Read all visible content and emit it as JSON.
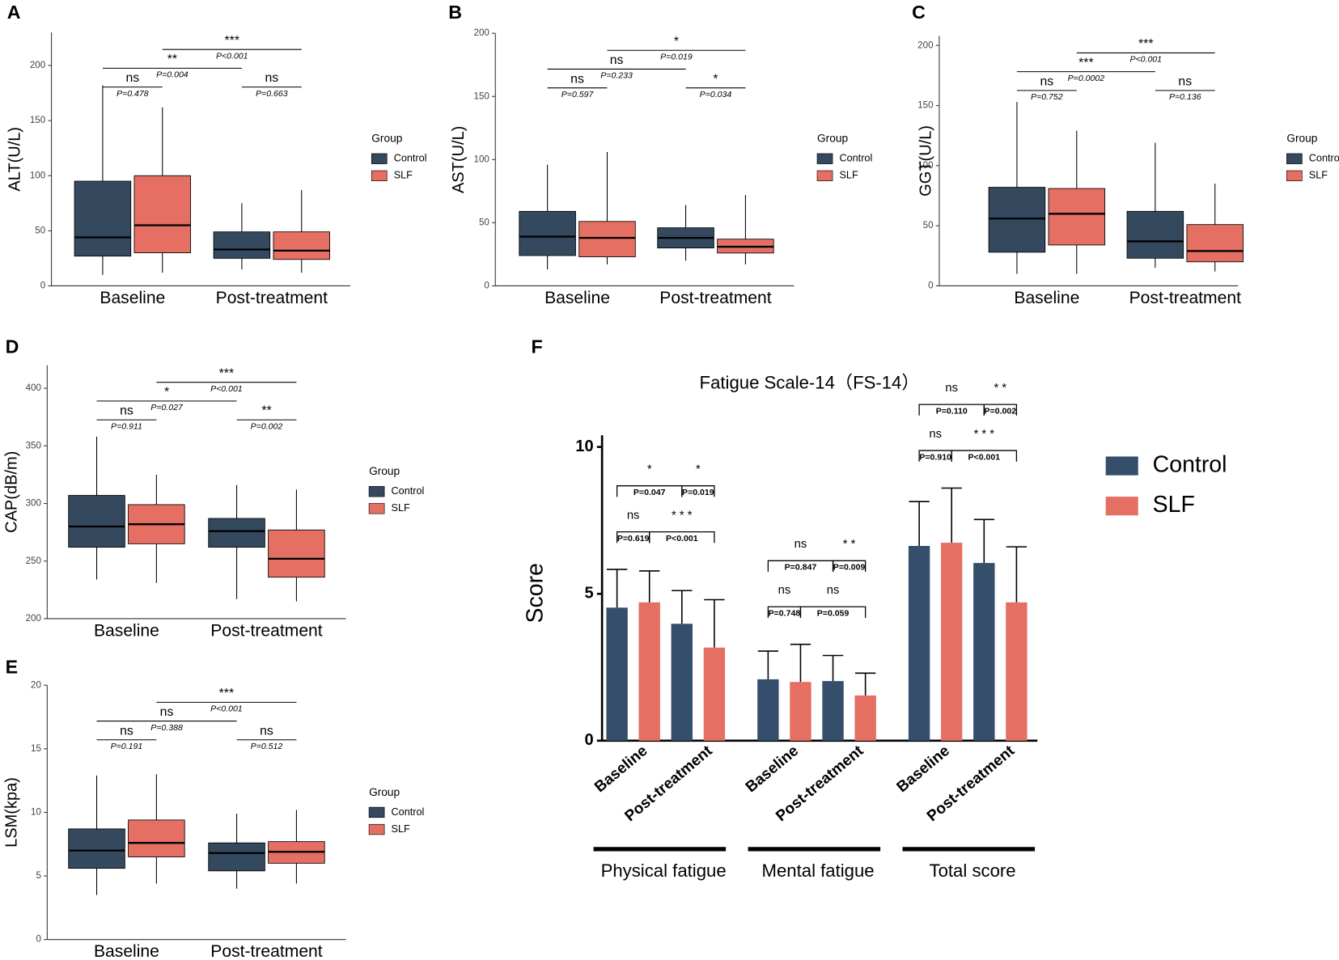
{
  "chart_data": [
    {
      "panel": "A",
      "type": "box",
      "ylabel": "ALT(U/L)",
      "categories": [
        "Baseline",
        "Post-treatment"
      ],
      "ylim": [
        0,
        230
      ],
      "yticks": [
        0,
        50,
        100,
        150,
        200
      ],
      "legend_title": "Group",
      "series": [
        {
          "name": "Control",
          "color": "#34495e",
          "values": [
            {
              "min": 10,
              "q1": 27,
              "median": 44,
              "q3": 95,
              "max": 182
            },
            {
              "min": 15,
              "q1": 25,
              "median": 33,
              "q3": 49,
              "max": 75
            }
          ]
        },
        {
          "name": "SLF",
          "color": "#e46f62",
          "values": [
            {
              "min": 12,
              "q1": 30,
              "median": 55,
              "q3": 100,
              "max": 162
            },
            {
              "min": 12,
              "q1": 24,
              "median": 32,
              "q3": 49,
              "max": 87
            }
          ]
        }
      ],
      "annotations": [
        {
          "label": "ns",
          "p": "P=0.478"
        },
        {
          "label": "ns",
          "p": "P=0.663"
        },
        {
          "label": "**",
          "p": "P=0.004"
        },
        {
          "label": "***",
          "p": "P<0.001"
        }
      ]
    },
    {
      "panel": "B",
      "type": "box",
      "ylabel": "AST(U/L)",
      "categories": [
        "Baseline",
        "Post-treatment"
      ],
      "ylim": [
        0,
        200
      ],
      "yticks": [
        0,
        50,
        100,
        150,
        200
      ],
      "legend_title": "Group",
      "series": [
        {
          "name": "Control",
          "color": "#34495e",
          "values": [
            {
              "min": 13,
              "q1": 24,
              "median": 39,
              "q3": 59,
              "max": 96
            },
            {
              "min": 20,
              "q1": 30,
              "median": 38,
              "q3": 46,
              "max": 64
            }
          ]
        },
        {
          "name": "SLF",
          "color": "#e46f62",
          "values": [
            {
              "min": 17,
              "q1": 23,
              "median": 38,
              "q3": 51,
              "max": 106
            },
            {
              "min": 17,
              "q1": 26,
              "median": 31,
              "q3": 37,
              "max": 72
            }
          ]
        }
      ],
      "annotations": [
        {
          "label": "ns",
          "p": "P=0.597"
        },
        {
          "label": "*",
          "p": "P=0.034"
        },
        {
          "label": "ns",
          "p": "P=0.233"
        },
        {
          "label": "*",
          "p": "P=0.019"
        }
      ]
    },
    {
      "panel": "C",
      "type": "box",
      "ylabel": "GGT(U/L)",
      "categories": [
        "Baseline",
        "Post-treatment"
      ],
      "ylim": [
        0,
        208
      ],
      "yticks": [
        0,
        50,
        100,
        150,
        200
      ],
      "legend_title": "Group",
      "series": [
        {
          "name": "Control",
          "color": "#34495e",
          "values": [
            {
              "min": 10,
              "q1": 28,
              "median": 56,
              "q3": 82,
              "max": 153
            },
            {
              "min": 15,
              "q1": 23,
              "median": 37,
              "q3": 62,
              "max": 119
            }
          ]
        },
        {
          "name": "SLF",
          "color": "#e46f62",
          "values": [
            {
              "min": 10,
              "q1": 34,
              "median": 60,
              "q3": 81,
              "max": 129
            },
            {
              "min": 12,
              "q1": 20,
              "median": 29,
              "q3": 51,
              "max": 85
            }
          ]
        }
      ],
      "annotations": [
        {
          "label": "ns",
          "p": "P=0.752"
        },
        {
          "label": "ns",
          "p": "P=0.136"
        },
        {
          "label": "***",
          "p": "P=0.0002"
        },
        {
          "label": "***",
          "p": "P<0.001"
        }
      ]
    },
    {
      "panel": "D",
      "type": "box",
      "ylabel": "CAP(dB/m)",
      "categories": [
        "Baseline",
        "Post-treatment"
      ],
      "ylim": [
        200,
        420
      ],
      "yticks": [
        200,
        250,
        300,
        350,
        400
      ],
      "legend_title": "Group",
      "series": [
        {
          "name": "Control",
          "color": "#34495e",
          "values": [
            {
              "min": 234,
              "q1": 262,
              "median": 280,
              "q3": 307,
              "max": 358
            },
            {
              "min": 217,
              "q1": 262,
              "median": 276,
              "q3": 287,
              "max": 316
            }
          ]
        },
        {
          "name": "SLF",
          "color": "#e46f62",
          "values": [
            {
              "min": 231,
              "q1": 265,
              "median": 282,
              "q3": 299,
              "max": 325
            },
            {
              "min": 215,
              "q1": 236,
              "median": 252,
              "q3": 277,
              "max": 312
            }
          ]
        }
      ],
      "annotations": [
        {
          "label": "ns",
          "p": "P=0.911"
        },
        {
          "label": "**",
          "p": "P=0.002"
        },
        {
          "label": "*",
          "p": "P=0.027"
        },
        {
          "label": "***",
          "p": "P<0.001"
        }
      ]
    },
    {
      "panel": "E",
      "type": "box",
      "ylabel": "LSM(kpa)",
      "categories": [
        "Baseline",
        "Post-treatment"
      ],
      "ylim": [
        0,
        20
      ],
      "yticks": [
        0,
        5,
        10,
        15,
        20
      ],
      "legend_title": "Group",
      "series": [
        {
          "name": "Control",
          "color": "#34495e",
          "values": [
            {
              "min": 3.5,
              "q1": 5.6,
              "median": 7.0,
              "q3": 8.7,
              "max": 12.9
            },
            {
              "min": 4.0,
              "q1": 5.4,
              "median": 6.8,
              "q3": 7.6,
              "max": 9.9
            }
          ]
        },
        {
          "name": "SLF",
          "color": "#e46f62",
          "values": [
            {
              "min": 4.4,
              "q1": 6.5,
              "median": 7.6,
              "q3": 9.4,
              "max": 13.0
            },
            {
              "min": 4.4,
              "q1": 6.0,
              "median": 6.9,
              "q3": 7.7,
              "max": 10.2
            }
          ]
        }
      ],
      "annotations": [
        {
          "label": "ns",
          "p": "P=0.191"
        },
        {
          "label": "ns",
          "p": "P=0.512"
        },
        {
          "label": "ns",
          "p": "P=0.388"
        },
        {
          "label": "***",
          "p": "P<0.001"
        }
      ]
    },
    {
      "panel": "F",
      "type": "bar",
      "title": "Fatigue Scale-14（FS-14）",
      "ylabel": "Score",
      "groups": [
        "Physical fatigue",
        "Mental fatigue",
        "Total score"
      ],
      "categories": [
        "Baseline",
        "Post-treatment",
        "Baseline",
        "Post-treatment",
        "Baseline",
        "Post-treatment"
      ],
      "ylim": [
        0,
        10.4
      ],
      "yticks": [
        0,
        5,
        10
      ],
      "series": [
        {
          "name": "Control",
          "color": "#344e6c",
          "values": [
            4.53,
            3.98,
            2.09,
            2.03,
            6.63,
            6.05
          ],
          "errors": [
            1.3,
            1.13,
            0.96,
            0.87,
            1.51,
            1.48
          ]
        },
        {
          "name": "SLF",
          "color": "#e46f62",
          "values": [
            4.71,
            3.17,
            2.0,
            1.54,
            6.74,
            4.71
          ],
          "errors": [
            1.07,
            1.63,
            1.28,
            0.76,
            1.86,
            1.89
          ]
        }
      ],
      "annotations": [
        [
          {
            "label": "ns",
            "p": "P=0.619"
          },
          {
            "label": "* * *",
            "p": "P<0.001"
          },
          {
            "label": "*",
            "p": "P=0.047"
          },
          {
            "label": "*",
            "p": "P=0.019"
          }
        ],
        [
          {
            "label": "ns",
            "p": "P=0.748"
          },
          {
            "label": "ns",
            "p": "P=0.059"
          },
          {
            "label": "ns",
            "p": "P=0.847"
          },
          {
            "label": "* *",
            "p": "P=0.009"
          }
        ],
        [
          {
            "label": "ns",
            "p": "P=0.910"
          },
          {
            "label": "* * *",
            "p": "P<0.001"
          },
          {
            "label": "ns",
            "p": "P=0.110"
          },
          {
            "label": "* *",
            "p": "P=0.002"
          }
        ]
      ]
    }
  ]
}
